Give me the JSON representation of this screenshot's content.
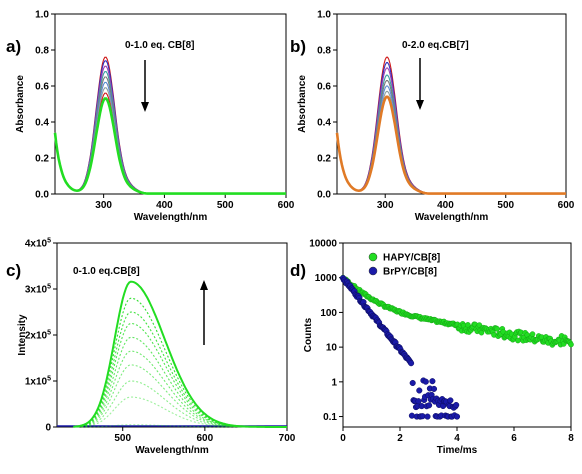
{
  "colors": {
    "green": "#22dd22",
    "blue": "#1a1aa8",
    "orange": "#e07a26",
    "abs_series": [
      "#d01a1a",
      "#3030c0",
      "#a040b0",
      "#3a9fa0",
      "#7a7a7a",
      "#5a8ad0",
      "#8aa0a0"
    ]
  },
  "chart_data": [
    {
      "id": "a",
      "type": "line",
      "panel_label": "a)",
      "annotation": "0-1.0 eq. CB[8]",
      "xlabel": "Wavelength/nm",
      "ylabel": "Absorbance",
      "xlim": [
        220,
        600
      ],
      "ylim": [
        0,
        1.0
      ],
      "xticks": [
        300,
        400,
        500,
        600
      ],
      "yticks": [
        0.0,
        0.2,
        0.4,
        0.6,
        0.8,
        1.0
      ],
      "yticklabels": [
        "0.0",
        "0.2",
        "0.4",
        "0.6",
        "0.8",
        "1.0"
      ],
      "series_peaks": [
        0.76,
        0.74,
        0.71,
        0.68,
        0.65,
        0.62,
        0.59,
        0.56,
        0.53
      ],
      "final_color": "green"
    },
    {
      "id": "b",
      "type": "line",
      "panel_label": "b)",
      "annotation": "0-2.0 eq.CB[7]",
      "xlabel": "Wavelength/nm",
      "ylabel": "Absorbance",
      "xlim": [
        220,
        600
      ],
      "ylim": [
        0,
        1.0
      ],
      "xticks": [
        300,
        400,
        500,
        600
      ],
      "yticks": [
        0.0,
        0.2,
        0.4,
        0.6,
        0.8,
        1.0
      ],
      "yticklabels": [
        "0.0",
        "0.2",
        "0.4",
        "0.6",
        "0.8",
        "1.0"
      ],
      "series_peaks": [
        0.76,
        0.73,
        0.7,
        0.66,
        0.63,
        0.6,
        0.57,
        0.54
      ],
      "final_color": "orange"
    },
    {
      "id": "c",
      "type": "line",
      "panel_label": "c)",
      "annotation": "0-1.0 eq.CB[8]",
      "xlabel": "Wavelength/nm",
      "ylabel": "Intensity",
      "xlim": [
        420,
        700
      ],
      "ylim": [
        0,
        400000
      ],
      "xticks": [
        500,
        600,
        700
      ],
      "yticks": [
        0,
        100000,
        200000,
        300000,
        400000
      ],
      "yticklabels": [
        {
          "base": "0",
          "exp": ""
        },
        {
          "base": "1x10",
          "exp": "5"
        },
        {
          "base": "2x10",
          "exp": "5"
        },
        {
          "base": "3x10",
          "exp": "5"
        },
        {
          "base": "4x10",
          "exp": "5"
        }
      ],
      "peak_x": 510,
      "series_peaks": [
        316000,
        280000,
        250000,
        225000,
        195000,
        165000,
        135000,
        100000,
        65000,
        5000
      ]
    },
    {
      "id": "d",
      "type": "scatter",
      "panel_label": "d)",
      "xlabel": "Time/ms",
      "ylabel": "Counts",
      "xlim": [
        0,
        8
      ],
      "ylim": [
        0.05,
        10000
      ],
      "log_y": true,
      "xticks": [
        0,
        2,
        4,
        6,
        8
      ],
      "yticks": [
        0.1,
        1,
        10,
        100,
        1000,
        10000
      ],
      "yticklabels": [
        "0.1",
        "1",
        "10",
        "100",
        "1000",
        "10000"
      ],
      "legend_position": "top-left",
      "series": [
        {
          "name": "HAPY/CB[8]",
          "color": "green",
          "start": 1000,
          "x_end": 8,
          "end": 13
        },
        {
          "name": "BrPY/CB[8]",
          "color": "blue",
          "start": 1000,
          "x_end": 4,
          "end": 0.1
        }
      ]
    }
  ]
}
